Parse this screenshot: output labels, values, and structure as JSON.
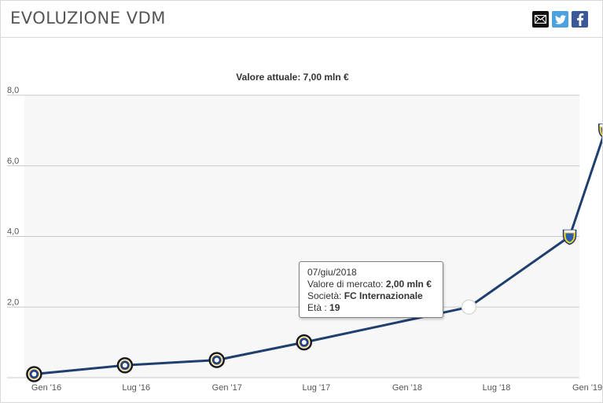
{
  "header": {
    "title": "EVOLUZIONE VDM",
    "share": [
      {
        "icon": "mail-icon",
        "color": "#111111"
      },
      {
        "icon": "twitter-icon",
        "color": "#4aa3e0"
      },
      {
        "icon": "facebook-icon",
        "color": "#3b5998"
      }
    ]
  },
  "chart_data": {
    "type": "line",
    "title": "Valore attuale: 7,00 mln €",
    "xlabel": "",
    "ylabel": "",
    "x_ticks": [
      "Gen '16",
      "Lug '16",
      "Gen '17",
      "Lug '17",
      "Gen '18",
      "Lug '18",
      "Gen '19"
    ],
    "y_ticks": [
      "2,0",
      "4,0",
      "6,0",
      "8,0"
    ],
    "ylim": [
      0,
      8
    ],
    "grid": true,
    "line_color": "#1f3f6e",
    "points": [
      {
        "date": "2016-01-08",
        "value": 0.1,
        "club": "Inter"
      },
      {
        "date": "2016-07-10",
        "value": 0.35,
        "club": "Inter"
      },
      {
        "date": "2017-01-12",
        "value": 0.5,
        "club": "Inter"
      },
      {
        "date": "2017-07-08",
        "value": 1.0,
        "club": "Inter"
      },
      {
        "date": "2018-06-07",
        "value": 2.0,
        "club": "Inter"
      },
      {
        "date": "2018-12-28",
        "value": 4.0,
        "club": "Frosinone"
      },
      {
        "date": "2019-03-10",
        "value": 7.0,
        "club": "Frosinone"
      }
    ],
    "hovered_point": 4
  },
  "tooltip": {
    "date": "07/giu/2018",
    "market_label": "Valore di mercato:",
    "market_value": "2,00 mln €",
    "club_label": "Società:",
    "club_value": "FC Internazionale",
    "age_label": "Età :",
    "age_value": "19"
  }
}
